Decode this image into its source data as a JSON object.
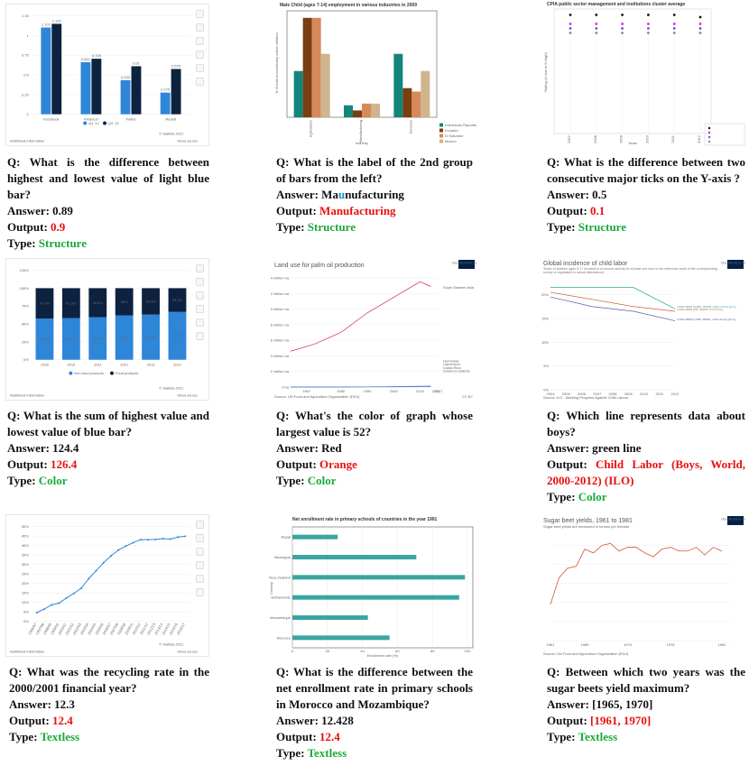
{
  "items": [
    {
      "question": "Q: What is the difference between highest and lowest value of light blue bar?",
      "answer_pre": "Answer: 0.89",
      "answer_mid": "",
      "answer_post": "",
      "output_label": "Output: ",
      "output_value": "0.9",
      "type_label": "Type: ",
      "type_value": "Structure",
      "chart_data": {
        "type": "bar",
        "categories": [
          "Facebook",
          "Pinterest",
          "Twitter",
          "Reddit"
        ],
        "series": [
          {
            "name": "Q4 '12",
            "values": [
              1.102,
              0.661,
              0.433,
              0.275
            ]
          },
          {
            "name": "Q4 '13",
            "values": [
              1.149,
              0.705,
              0.61,
              0.575
            ]
          }
        ],
        "value_labels": [
          [
            "1.102",
            "1.149"
          ],
          [
            "0.661",
            "0.705"
          ],
          [
            "0.433",
            "0.61"
          ],
          [
            "0.275",
            "0.575"
          ]
        ],
        "ytick_labels": [
          "0",
          "0.25",
          "0.5",
          "0.75",
          "1",
          "1.25"
        ],
        "ylim": [
          0,
          1.25
        ],
        "footer_left": "Additional Information",
        "footer_right": "Show source",
        "source": "© Statista 2021",
        "colors": {
          "light": "#2e86d8",
          "dark": "#0d2240"
        }
      }
    },
    {
      "question": "Q: What is the label of the 2nd group of bars from the left?",
      "answer_pre": "Answer: Ma",
      "answer_mid": "u",
      "answer_post": "nufacturing",
      "output_label": "Output: ",
      "output_value": "Manufacturing",
      "type_label": "Type: ",
      "type_value": "Structure",
      "chart_data": {
        "type": "bar",
        "title": "Male Child (ages 7-14) employment in various industries in 2009",
        "xlabel": "Industry",
        "ylabel": "% of total economically active children",
        "categories": [
          "Agriculture",
          "Manufacturing",
          "Services"
        ],
        "series": [
          {
            "name": "Dominican Republic",
            "values": [
              27,
              7,
              37
            ]
          },
          {
            "name": "Ecuador",
            "values": [
              58,
              4,
              17
            ]
          },
          {
            "name": "El Salvador",
            "values": [
              58,
              8,
              15
            ]
          },
          {
            "name": "Mexico",
            "values": [
              37,
              8,
              27
            ]
          }
        ],
        "ylim": [
          0,
          60
        ],
        "colors": [
          "#13857c",
          "#7a3f10",
          "#d8895b",
          "#cfb48d"
        ]
      }
    },
    {
      "question": "Q: What is the difference between two consecutive major ticks on the Y-axis ?",
      "answer_pre": "Answer: 0.5",
      "answer_mid": "",
      "answer_post": "",
      "output_label": "Output: ",
      "output_value": "0.1",
      "type_label": "Type: ",
      "type_value": "Structure",
      "chart_data": {
        "type": "scatter",
        "title": "CPIA public sector management and institutions cluster average",
        "xlabel": "Years",
        "ylabel": "Rating (1=low to 6=high)",
        "x": [
          "2007",
          "2008",
          "2009",
          "2010",
          "2011",
          "2012"
        ],
        "series": [
          {
            "name": "",
            "values": [
              4.9,
              4.9,
              4.9,
              4.9,
              4.9,
              4.8
            ]
          },
          {
            "name": "",
            "values": [
              4.5,
              4.5,
              4.5,
              4.5,
              4.5,
              4.5
            ]
          },
          {
            "name": "",
            "values": [
              4.3,
              4.3,
              4.3,
              4.3,
              4.3,
              4.3
            ]
          },
          {
            "name": "",
            "values": [
              4.1,
              4.1,
              4.1,
              4.1,
              4.1,
              4.1
            ]
          }
        ],
        "colors": [
          "#111111",
          "#e21bd9",
          "#5a5ad0",
          "#888888"
        ]
      }
    },
    {
      "question": "Q: What is the sum of highest value and lowest value of blue bar?",
      "answer_pre": "Answer: 124.4",
      "answer_mid": "",
      "answer_post": "",
      "output_label": "Output: ",
      "output_value": "126.4",
      "type_label": "Type: ",
      "type_value": "Color",
      "chart_data": {
        "type": "bar",
        "categories": [
          "2009",
          "2010",
          "2011",
          "2012",
          "2013",
          "2014"
        ],
        "series": [
          {
            "name": "Non-food products",
            "values": [
              57.6,
              58.1,
              59.4,
              62,
              63.1,
              66.8
            ]
          },
          {
            "name": "Food products",
            "values": [
              42.4,
              41.9,
              40.6,
              38,
              36.9,
              33.2
            ]
          }
        ],
        "value_labels": [
          [
            "57.6%",
            "58.1%",
            "59.4%",
            "62%",
            "63.1%",
            "66.8%"
          ],
          [
            "42.4%",
            "41.9%",
            "40.6%",
            "38%",
            "36.9%",
            "33.2%"
          ]
        ],
        "ytick_labels": [
          "0%",
          "25%",
          "50%",
          "75%",
          "100%",
          "125%"
        ],
        "ylim": [
          0,
          125
        ],
        "footer_left": "Additional Information",
        "footer_right": "Show source",
        "source": "© Statista 2021",
        "colors": {
          "light": "#2e86d8",
          "dark": "#0d2240"
        }
      }
    },
    {
      "question": "Q: What's the color of graph whose largest value is 52?",
      "answer_pre": "Answer: Red",
      "answer_mid": "",
      "answer_post": "",
      "output_label": "Output: ",
      "output_value": "Orange",
      "type_label": "Type: ",
      "type_value": "Color",
      "chart_data": {
        "type": "line",
        "title": "Land use for palm oil production",
        "x": [
          1961,
          1970,
          1980,
          1990,
          2000,
          2010,
          2014
        ],
        "series": [
          {
            "name": "South Eastern Asia",
            "values": [
              4.6,
              5.5,
              7,
              9.5,
              11.5,
              13.5,
              12.9
            ]
          },
          {
            "name": "Honduras",
            "values": [
              0,
              0,
              0.01,
              0.02,
              0.05,
              0.1,
              0.12
            ]
          },
          {
            "name": "Cameroon",
            "values": [
              0,
              0,
              0.01,
              0.02,
              0.03,
              0.05,
              0.06
            ]
          }
        ],
        "ytick_labels": [
          "0 ha",
          "2 million ha",
          "4 million ha",
          "6 million ha",
          "8 million ha",
          "10 million ha",
          "12 million ha",
          "14 million ha"
        ],
        "xtick_labels": [
          "1967",
          "1980",
          "1990",
          "2000",
          "2010",
          "2016",
          "2017"
        ],
        "legend_labels": [
          "South Eastern Asia",
          "Honduras",
          "Cameroon",
          "Costa Rica",
          "Solomon Islands"
        ],
        "source": "Source: UN Food and Agriculture Organization (FAO)",
        "license": "CC BY",
        "badge": "Our World in Data",
        "colors": [
          "#d6285d",
          "#8b5cc8",
          "#3b7bd3"
        ]
      }
    },
    {
      "question": "Q: Which line represents data about boys?",
      "answer_pre": "Answer: green line",
      "answer_mid": "",
      "answer_post": "",
      "output_label": "Output: ",
      "output_value": "Child Labor (Boys, World, 2000-2012) (ILO)",
      "type_label": "Type: ",
      "type_value": "Color",
      "chart_data": {
        "type": "line",
        "title": "Global incidence of child labor",
        "subtitle": "Share of children ages 5-17 involved in economic activity for at least one hour in the reference week of the corresponding survey or equivalent in school attendance)",
        "x": [
          2000,
          2004,
          2008,
          2012
        ],
        "series": [
          {
            "name": "Child Labor (Boys, World, 2000-2012) (ILO)",
            "values": [
              21.5,
              21.5,
              21.5,
              17
            ]
          },
          {
            "name": "Child Labor (All, World, ILO-IPEC)",
            "values": [
              20.5,
              19,
              17.5,
              16.5
            ]
          },
          {
            "name": "Child Labor (Girls, World, 2000-2012) (ILO)",
            "values": [
              19.5,
              17.5,
              16.5,
              14.5
            ]
          }
        ],
        "ytick_labels": [
          "0%",
          "5%",
          "10%",
          "15%",
          "20%"
        ],
        "xtick_labels": [
          "2004",
          "2005",
          "2006",
          "2007",
          "2008",
          "2009",
          "2010",
          "2011",
          "2012"
        ],
        "source": "Source: ILO - Marking Progress Against Child Labour",
        "badge": "Our World in Data",
        "colors": [
          "#2da59a",
          "#d05a32",
          "#5b5ba8"
        ]
      }
    },
    {
      "question": "Q: What was the recycling rate in the 2000/2001 financial year?",
      "answer_pre": "Answer: 12.3",
      "answer_mid": "",
      "answer_post": "",
      "output_label": "Output: ",
      "output_value": "12.4",
      "type_label": "Type: ",
      "type_value": "Textless",
      "chart_data": {
        "type": "line",
        "categories": [
          "1996/97",
          "1997/98",
          "1998/99",
          "1999/00",
          "2000/01",
          "2001/02",
          "2002/03",
          "2003/04",
          "2004/05",
          "2005/06",
          "2006/07",
          "2007/08",
          "2008/09",
          "2009/10",
          "2010/11",
          "2011/12",
          "2012/13",
          "2013/14",
          "2014/15",
          "2015/16",
          "2016/17"
        ],
        "values": [
          4.6,
          6.4,
          8.7,
          9.6,
          12.3,
          14.7,
          17.5,
          22.5,
          26.7,
          30.9,
          34.5,
          37.6,
          39.7,
          41.5,
          43.1,
          43.1,
          43.2,
          43.6,
          43.4,
          44.4,
          44.9
        ],
        "footer_left": "Additional Information",
        "footer_right": "Show source",
        "source": "© Statista 2021",
        "colors": {
          "line": "#2e86d8"
        }
      }
    },
    {
      "question": "Q: What is the difference between the net enrollment rate in primary schools in Morocco and Mozambique?",
      "answer_pre": "Answer: 12.428",
      "answer_mid": "",
      "answer_post": "",
      "output_label": "Output: ",
      "output_value": "12.4",
      "type_label": "Type: ",
      "type_value": "Textless",
      "chart_data": {
        "type": "bar",
        "title": "Net enrollment rate in primary schools of countries in the year 1991",
        "xlabel": "Enrollment rate (%)",
        "ylabel": "Country",
        "categories": [
          "Nepal",
          "Nicaragua",
          "New Zealand",
          "Netherlands",
          "Mozambique",
          "Morocco"
        ],
        "values": [
          25.9,
          70.8,
          98.6,
          95.3,
          43.1,
          55.5
        ],
        "xlim": [
          0,
          100
        ],
        "colors": {
          "bar": "#3aa5a0"
        }
      }
    },
    {
      "question": "Q: Between which two years was the sugar beets yield maximum?",
      "answer_pre": "Answer: [1965, 1970]",
      "answer_mid": "",
      "answer_post": "",
      "output_label": "Output: ",
      "output_value": "[1961, 1970]",
      "type_label": "Type: ",
      "type_value": "Textless",
      "chart_data": {
        "type": "line",
        "title": "Sugar beet yields, 1961 to 1981",
        "subtitle": "Sugar beet yields are measured in tonnes per hectare.",
        "x": [
          1961,
          1962,
          1963,
          1964,
          1965,
          1966,
          1967,
          1968,
          1969,
          1970,
          1971,
          1972,
          1973,
          1974,
          1975,
          1976,
          1977,
          1978,
          1979,
          1980,
          1981
        ],
        "values": [
          9.5,
          16.5,
          19,
          19.5,
          24,
          23,
          25,
          25.5,
          23.5,
          24.5,
          24.5,
          23,
          22,
          24,
          24.5,
          23.5,
          23.5,
          24.5,
          22.5,
          24.5,
          23.5
        ],
        "xtick_labels": [
          "1961",
          "1965",
          "1970",
          "1975",
          "1981"
        ],
        "source": "Source: UN Food and Agriculture Organization (FAO)",
        "badge": "Our World in Data",
        "colors": {
          "line": "#d8532f"
        }
      }
    }
  ]
}
